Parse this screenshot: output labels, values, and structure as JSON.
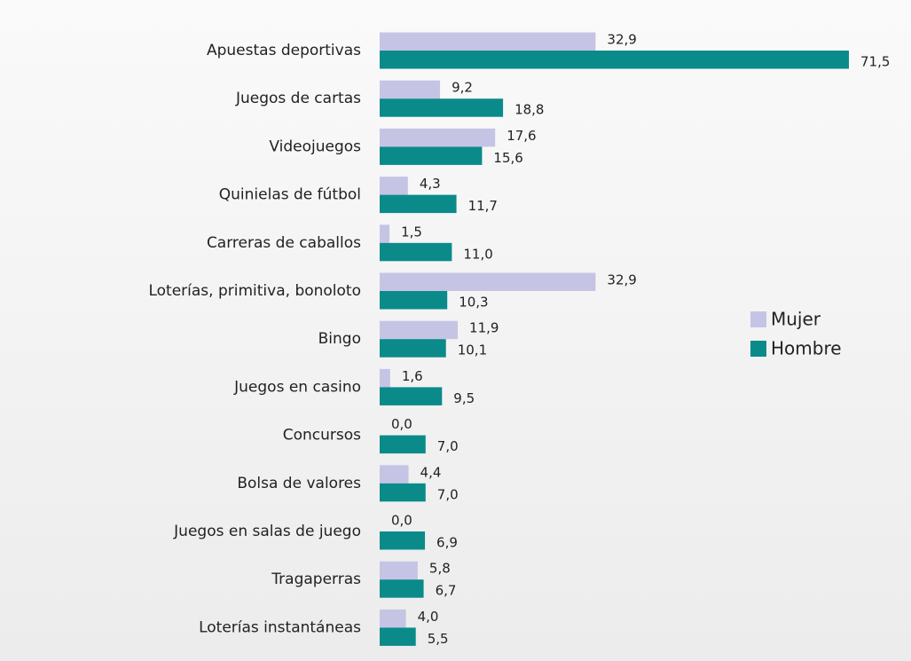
{
  "chart_data": {
    "type": "hbar",
    "categories": [
      "Apuestas deportivas",
      "Juegos de cartas",
      "Videojuegos",
      "Quinielas de fútbol",
      "Carreras de caballos",
      "Loterías, primitiva, bonoloto",
      "Bingo",
      "Juegos en casino",
      "Concursos",
      "Bolsa de valores",
      "Juegos en salas de juego",
      "Tragaperras",
      "Loterías instantáneas"
    ],
    "series": [
      {
        "name": "Mujer",
        "color": "#c6c4e4",
        "values": [
          32.9,
          9.2,
          17.6,
          4.3,
          1.5,
          32.9,
          11.9,
          1.6,
          0.0,
          4.4,
          0.0,
          5.8,
          4.0
        ],
        "value_labels": [
          "32,9",
          "9,2",
          "17,6",
          "4,3",
          "1,5",
          "32,9",
          "11,9",
          "1,6",
          "0,0",
          "4,4",
          "0,0",
          "5,8",
          "4,0"
        ]
      },
      {
        "name": "Hombre",
        "color": "#0b8a8a",
        "values": [
          71.5,
          18.8,
          15.6,
          11.7,
          11.0,
          10.3,
          10.1,
          9.5,
          7.0,
          7.0,
          6.9,
          6.7,
          5.5
        ],
        "value_labels": [
          "71,5",
          "18,8",
          "15,6",
          "11,7",
          "11,0",
          "10,3",
          "10,1",
          "9,5",
          "7,0",
          "7,0",
          "6,9",
          "6,7",
          "5,5"
        ]
      }
    ],
    "legend": "right"
  }
}
